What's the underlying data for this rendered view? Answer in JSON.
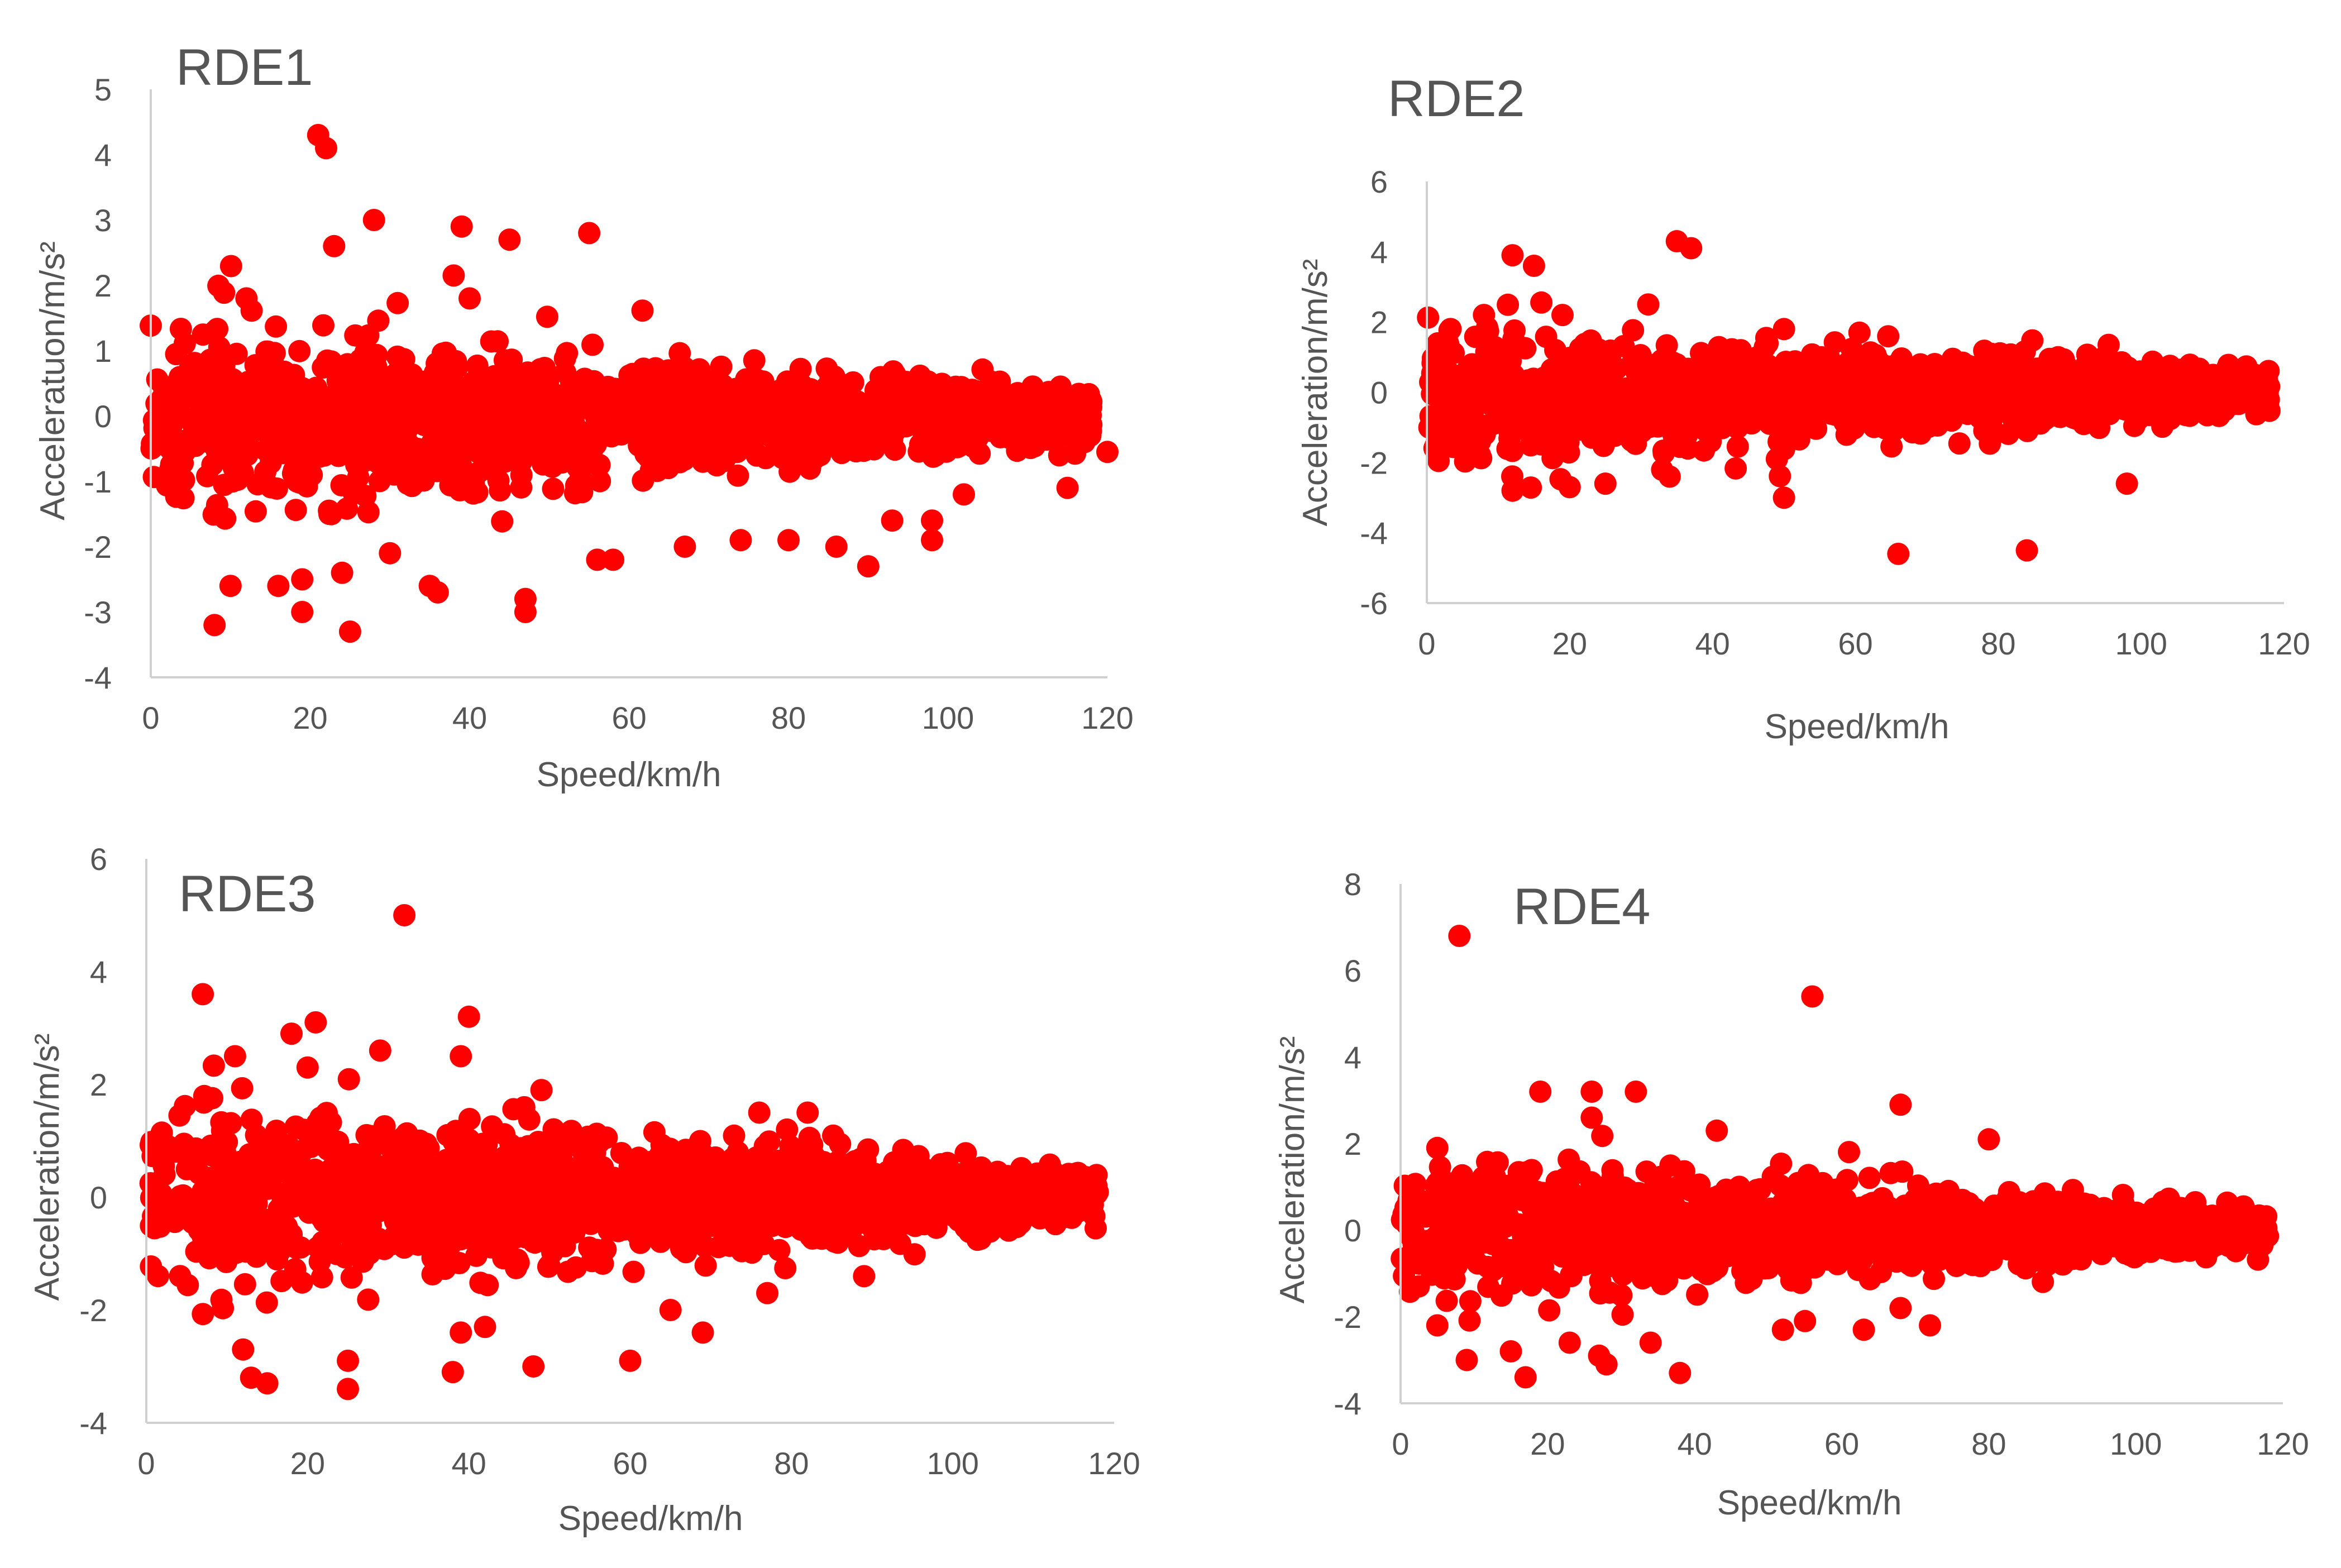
{
  "chart_data": [
    {
      "type": "scatter",
      "title": "RDE1",
      "xlabel": "Speed/km/h",
      "ylabel": "Acceleratuon/m/s²",
      "xlim": [
        0,
        120
      ],
      "ylim": [
        -4,
        5
      ],
      "xticks": [
        "0",
        "20",
        "40",
        "60",
        "80",
        "100",
        "120"
      ],
      "yticks": [
        "5",
        "4",
        "3",
        "2",
        "1",
        "0",
        "-1",
        "-2",
        "-3",
        "-4"
      ],
      "series_color": "#ff0000",
      "outliers": [
        {
          "x": 21,
          "y": 4.3
        },
        {
          "x": 22,
          "y": 4.1
        },
        {
          "x": 23,
          "y": 2.6
        },
        {
          "x": 28,
          "y": 3.0
        },
        {
          "x": 39,
          "y": 2.9
        },
        {
          "x": 45,
          "y": 2.7
        },
        {
          "x": 55,
          "y": 2.8
        },
        {
          "x": 38,
          "y": 2.15
        },
        {
          "x": 40,
          "y": 1.8
        },
        {
          "x": 12,
          "y": 1.8
        },
        {
          "x": 8,
          "y": -3.2
        },
        {
          "x": 25,
          "y": -3.3
        },
        {
          "x": 19,
          "y": -3.0
        },
        {
          "x": 47,
          "y": -3.0
        },
        {
          "x": 47,
          "y": -2.8
        },
        {
          "x": 36,
          "y": -2.7
        },
        {
          "x": 10,
          "y": -2.6
        },
        {
          "x": 16,
          "y": -2.6
        },
        {
          "x": 19,
          "y": -2.5
        },
        {
          "x": 56,
          "y": -2.2
        },
        {
          "x": 58,
          "y": -2.2
        },
        {
          "x": 67,
          "y": -2.0
        },
        {
          "x": 86,
          "y": -2.0
        },
        {
          "x": 90,
          "y": -2.3
        },
        {
          "x": 98,
          "y": -1.9
        },
        {
          "x": 98,
          "y": -1.6
        },
        {
          "x": 93,
          "y": -1.6
        },
        {
          "x": 80,
          "y": -1.9
        },
        {
          "x": 74,
          "y": -1.9
        },
        {
          "x": 102,
          "y": -1.2
        },
        {
          "x": 115,
          "y": -1.1
        },
        {
          "x": 120,
          "y": -0.55
        },
        {
          "x": 24,
          "y": -2.4
        },
        {
          "x": 30,
          "y": -2.1
        },
        {
          "x": 35,
          "y": -2.6
        }
      ]
    },
    {
      "type": "scatter",
      "title": "RDE2",
      "xlabel": "Speed/km/h",
      "ylabel": "Acceleration/m/s²",
      "xlim": [
        0,
        120
      ],
      "ylim": [
        -6,
        6
      ],
      "xticks": [
        "0",
        "20",
        "40",
        "60",
        "80",
        "100",
        "120"
      ],
      "yticks": [
        "6",
        "4",
        "2",
        "0",
        "-2",
        "-4",
        "-6"
      ],
      "series_color": "#ff0000",
      "outliers": [
        {
          "x": 35,
          "y": 4.3
        },
        {
          "x": 37,
          "y": 4.1
        },
        {
          "x": 12,
          "y": 3.9
        },
        {
          "x": 15,
          "y": 3.6
        },
        {
          "x": 31,
          "y": 2.5
        },
        {
          "x": 8,
          "y": 2.2
        },
        {
          "x": 19,
          "y": 2.2
        },
        {
          "x": 66,
          "y": -4.6
        },
        {
          "x": 84,
          "y": -4.5
        },
        {
          "x": 50,
          "y": -3.0
        },
        {
          "x": 98,
          "y": -2.6
        },
        {
          "x": 12,
          "y": -2.8
        },
        {
          "x": 20,
          "y": -2.7
        },
        {
          "x": 25,
          "y": -2.6
        },
        {
          "x": 49,
          "y": -1.9
        },
        {
          "x": 34,
          "y": -2.4
        },
        {
          "x": 50,
          "y": 1.8
        }
      ]
    },
    {
      "type": "scatter",
      "title": "RDE3",
      "xlabel": "Speed/km/h",
      "ylabel": "Acceleration/m/s²",
      "xlim": [
        0,
        120
      ],
      "ylim": [
        -4,
        6
      ],
      "xticks": [
        "0",
        "20",
        "40",
        "60",
        "80",
        "100",
        "120"
      ],
      "yticks": [
        "6",
        "4",
        "2",
        "0",
        "-2",
        "-4"
      ],
      "series_color": "#ff0000",
      "outliers": [
        {
          "x": 32,
          "y": 5.0
        },
        {
          "x": 7,
          "y": 3.6
        },
        {
          "x": 18,
          "y": 2.9
        },
        {
          "x": 21,
          "y": 3.1
        },
        {
          "x": 40,
          "y": 3.2
        },
        {
          "x": 29,
          "y": 2.6
        },
        {
          "x": 39,
          "y": 2.5
        },
        {
          "x": 11,
          "y": 2.5
        },
        {
          "x": 20,
          "y": 2.3
        },
        {
          "x": 25,
          "y": -3.4
        },
        {
          "x": 15,
          "y": -3.3
        },
        {
          "x": 13,
          "y": -3.2
        },
        {
          "x": 38,
          "y": -3.1
        },
        {
          "x": 48,
          "y": -3.0
        },
        {
          "x": 60,
          "y": -2.9
        },
        {
          "x": 25,
          "y": -2.9
        },
        {
          "x": 69,
          "y": -2.4
        },
        {
          "x": 12,
          "y": -2.7
        },
        {
          "x": 39,
          "y": -2.4
        },
        {
          "x": 42,
          "y": -2.3
        },
        {
          "x": 77,
          "y": -1.7
        },
        {
          "x": 89,
          "y": -1.4
        },
        {
          "x": 65,
          "y": -2.0
        },
        {
          "x": 76,
          "y": 1.5
        },
        {
          "x": 82,
          "y": 1.5
        },
        {
          "x": 49,
          "y": 1.9
        }
      ]
    },
    {
      "type": "scatter",
      "title": "RDE4",
      "xlabel": "Speed/km/h",
      "ylabel": "Acceleration/m/s²",
      "xlim": [
        0,
        120
      ],
      "ylim": [
        -4,
        8
      ],
      "xticks": [
        "0",
        "20",
        "40",
        "60",
        "80",
        "100",
        "120"
      ],
      "yticks": [
        "8",
        "6",
        "4",
        "2",
        "0",
        "-2",
        "-4"
      ],
      "series_color": "#ff0000",
      "outliers": [
        {
          "x": 8,
          "y": 6.8
        },
        {
          "x": 56,
          "y": 5.4
        },
        {
          "x": 68,
          "y": 2.9
        },
        {
          "x": 80,
          "y": 2.1
        },
        {
          "x": 19,
          "y": 3.2
        },
        {
          "x": 26,
          "y": 3.2
        },
        {
          "x": 32,
          "y": 3.2
        },
        {
          "x": 26,
          "y": 2.6
        },
        {
          "x": 43,
          "y": 2.3
        },
        {
          "x": 5,
          "y": 1.9
        },
        {
          "x": 17,
          "y": -3.4
        },
        {
          "x": 38,
          "y": -3.3
        },
        {
          "x": 9,
          "y": -3.0
        },
        {
          "x": 28,
          "y": -3.1
        },
        {
          "x": 27,
          "y": -2.9
        },
        {
          "x": 34,
          "y": -2.6
        },
        {
          "x": 15,
          "y": -2.8
        },
        {
          "x": 52,
          "y": -2.3
        },
        {
          "x": 63,
          "y": -2.3
        },
        {
          "x": 72,
          "y": -2.2
        },
        {
          "x": 5,
          "y": -2.2
        },
        {
          "x": 23,
          "y": -2.6
        },
        {
          "x": 55,
          "y": -2.1
        },
        {
          "x": 68,
          "y": -1.8
        }
      ]
    }
  ]
}
